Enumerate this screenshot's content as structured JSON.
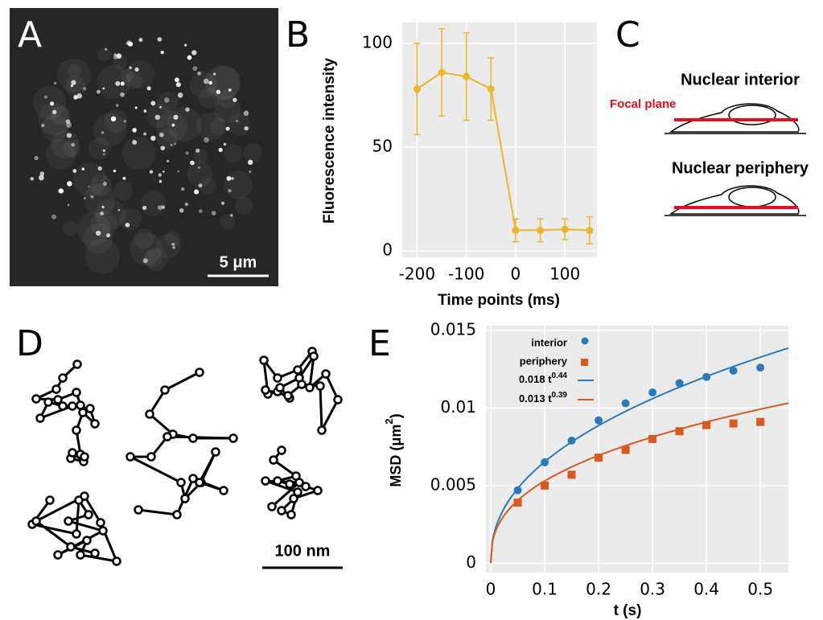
{
  "panel_labels": [
    "A",
    "B",
    "C",
    "D",
    "E"
  ],
  "panel_a": {
    "scale_bar": "5 μm"
  },
  "panel_c": {
    "interior": "Nuclear interior",
    "focal_plane": "Focal plane",
    "periphery": "Nuclear periphery"
  },
  "panel_d": {
    "scale_bar": "100 nm"
  },
  "chart_data": [
    {
      "type": "line",
      "xlabel": "Time points  (ms)",
      "ylabel": "Fluorescence intensity",
      "x": [
        -200,
        -150,
        -100,
        -50,
        0,
        50,
        100,
        150
      ],
      "series": [
        {
          "color": "#f0b429",
          "values": [
            78,
            86,
            84,
            78,
            10,
            10,
            10.5,
            10
          ],
          "errors": [
            22,
            21,
            21,
            15,
            5.5,
            5.5,
            5,
            6.5
          ]
        }
      ],
      "xlim": [
        -230,
        165
      ],
      "ylim": [
        -3,
        110
      ],
      "xticks": [
        -200,
        -100,
        0,
        100
      ],
      "yticks": [
        0,
        50,
        100
      ],
      "grid": true
    },
    {
      "type": "scatter",
      "xlabel": "t  (s)",
      "ylabel": "MSD  (μm",
      "ylabel_superscript": "2",
      "ylabel_end": ")",
      "x": [
        0.05,
        0.1,
        0.15,
        0.2,
        0.25,
        0.3,
        0.35,
        0.4,
        0.45,
        0.5
      ],
      "series": [
        {
          "name": "interior",
          "color": "#2b7bba",
          "marker": "circle",
          "values": [
            0.0047,
            0.0065,
            0.0079,
            0.0092,
            0.0103,
            0.011,
            0.0116,
            0.012,
            0.0124,
            0.0126
          ]
        },
        {
          "name": "periphery",
          "color": "#d95a1e",
          "marker": "square",
          "values": [
            0.0039,
            0.005,
            0.0057,
            0.0068,
            0.0073,
            0.008,
            0.0085,
            0.0089,
            0.009,
            0.0091
          ]
        }
      ],
      "fits": [
        {
          "name": "0.018 t",
          "superscript": "0.44",
          "color": "#2b7bba",
          "coefficient": 0.018,
          "exponent": 0.44
        },
        {
          "name": "0.013 t",
          "superscript": "0.39",
          "color": "#d95a1e",
          "coefficient": 0.013,
          "exponent": 0.39
        }
      ],
      "xlim": [
        -0.009,
        0.552
      ],
      "ylim": [
        -0.0006,
        0.0153
      ],
      "xticks": [
        0,
        0.1,
        0.2,
        0.3,
        0.4,
        0.5
      ],
      "yticks": [
        0,
        0.005,
        0.01,
        0.015
      ],
      "grid": true
    }
  ]
}
